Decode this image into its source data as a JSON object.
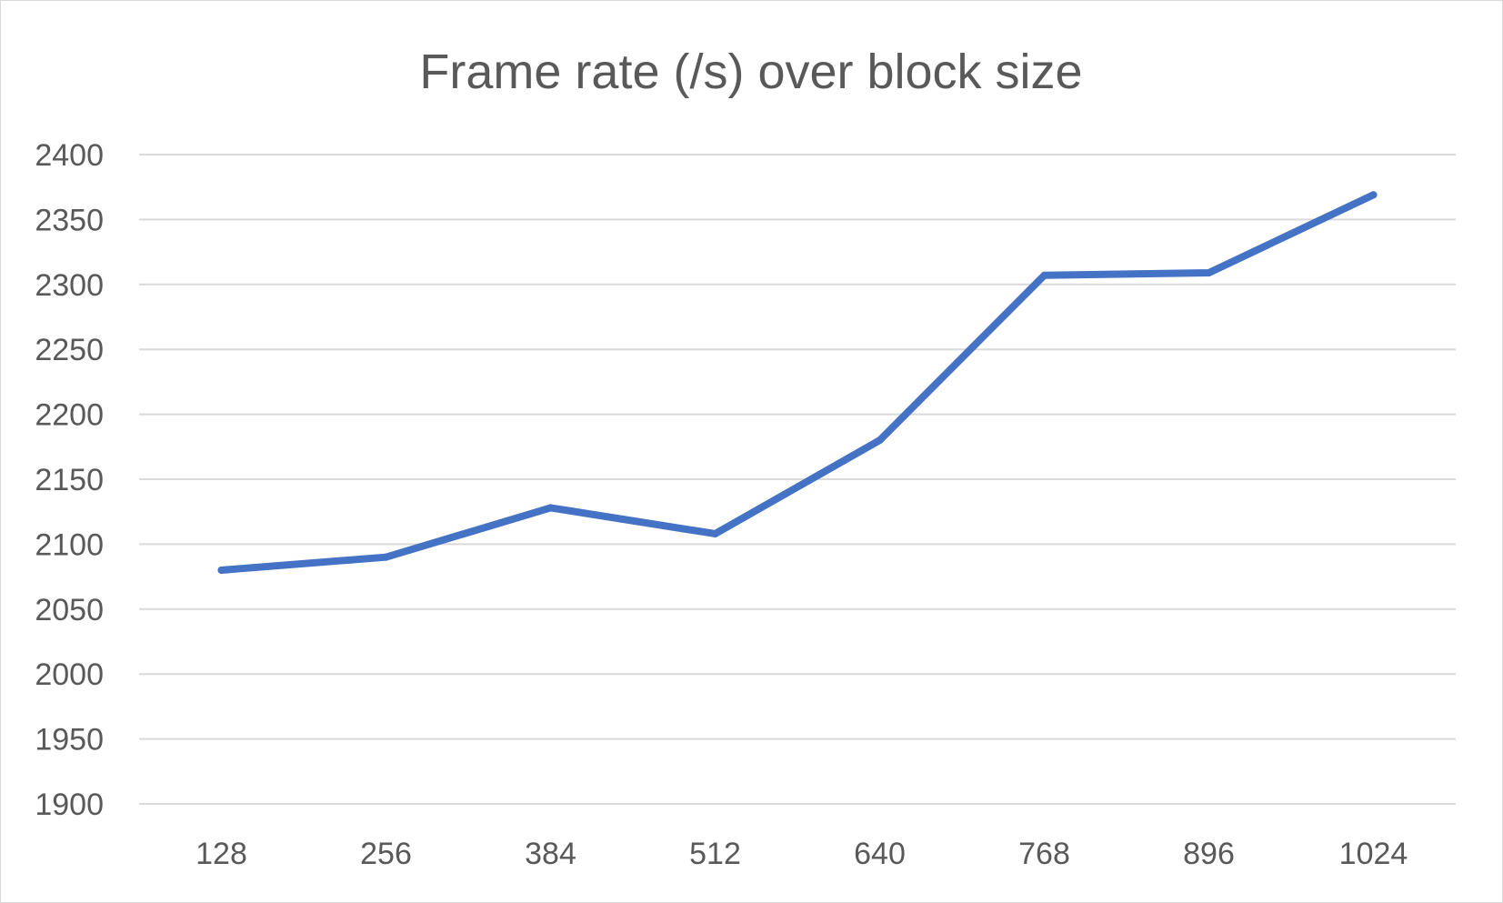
{
  "chart_data": {
    "type": "line",
    "title": "Frame rate (/s) over block size",
    "categories": [
      "128",
      "256",
      "384",
      "512",
      "640",
      "768",
      "896",
      "1024"
    ],
    "series": [
      {
        "values": [
          2080,
          2090,
          2128,
          2108,
          2180,
          2307,
          2309,
          2369
        ],
        "color": "#4472c4"
      }
    ],
    "ylim": [
      1900,
      2400
    ],
    "yticks": [
      "1900",
      "1950",
      "2000",
      "2050",
      "2100",
      "2150",
      "2200",
      "2250",
      "2300",
      "2350",
      "2400"
    ],
    "grid": true,
    "legend": "none"
  }
}
